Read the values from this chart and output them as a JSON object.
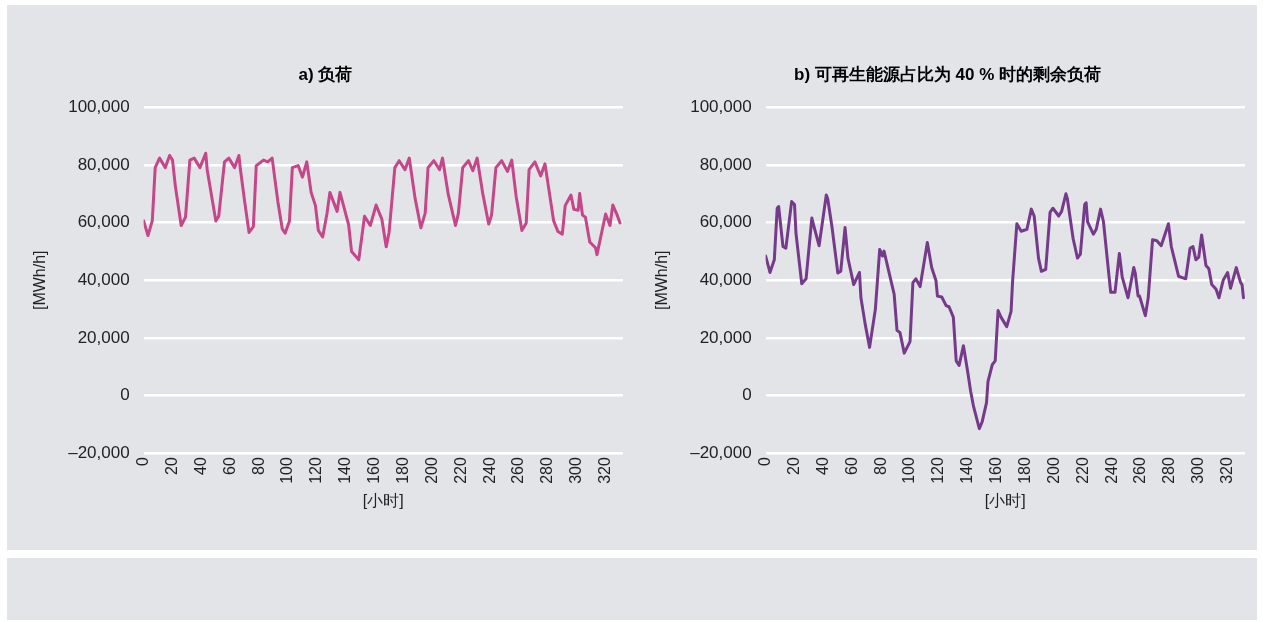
{
  "chart_data": [
    {
      "type": "line",
      "title": "a) 负荷",
      "xlabel": "[小时]",
      "ylabel": "[MWh/h]",
      "xlim": [
        0,
        332
      ],
      "xticks": [
        0,
        20,
        40,
        60,
        80,
        100,
        120,
        140,
        160,
        180,
        200,
        220,
        240,
        260,
        280,
        300,
        320
      ],
      "ylim": [
        -20000,
        100000
      ],
      "yticks": [
        {
          "value": -20000,
          "label": "–20,000"
        },
        0,
        {
          "value": 20000,
          "label": "20,000"
        },
        {
          "value": 40000,
          "label": "40,000"
        },
        {
          "value": 60000,
          "label": "60,000"
        },
        {
          "value": 80000,
          "label": "80,000"
        },
        {
          "value": 100000,
          "label": "100,000"
        }
      ],
      "grid": "y",
      "series": [
        {
          "color": "#c5478a",
          "x": [
            0,
            3,
            6,
            8,
            11,
            15,
            18,
            20,
            22,
            26,
            29,
            32,
            35,
            39,
            43,
            44,
            50,
            52,
            56,
            59,
            63,
            66,
            67,
            70,
            73,
            76,
            78,
            83,
            86,
            89,
            93,
            96,
            98,
            101,
            103,
            107,
            110,
            113,
            116,
            119,
            121,
            124,
            127,
            129,
            134,
            136,
            142,
            144,
            149,
            153,
            157,
            161,
            165,
            168,
            170,
            174,
            177,
            181,
            184,
            188,
            192,
            195,
            197,
            201,
            205,
            207,
            211,
            216,
            218,
            221,
            225,
            228,
            231,
            235,
            239,
            241,
            244,
            248,
            252,
            255,
            258,
            262,
            265,
            267,
            271,
            275,
            278,
            281,
            284,
            287,
            290,
            292,
            296,
            298,
            301,
            302,
            304,
            306,
            309,
            313,
            314,
            320,
            323,
            325,
            328,
            330
          ],
          "values": [
            60600,
            55500,
            60700,
            79100,
            82400,
            79100,
            83300,
            81700,
            72500,
            59000,
            61900,
            81700,
            82400,
            79100,
            84100,
            78400,
            60600,
            62200,
            81100,
            82400,
            79100,
            83300,
            78600,
            67200,
            56600,
            58600,
            79800,
            81700,
            81100,
            82400,
            67200,
            57900,
            56300,
            60600,
            79100,
            79800,
            75800,
            81100,
            70500,
            65900,
            57300,
            55000,
            63200,
            70500,
            63900,
            70500,
            59200,
            50000,
            47100,
            62200,
            59000,
            66100,
            61200,
            51600,
            56600,
            79100,
            81500,
            78400,
            82400,
            68500,
            58200,
            63200,
            79100,
            81500,
            78400,
            82400,
            69800,
            59000,
            63200,
            79100,
            81500,
            78000,
            82400,
            69800,
            59500,
            62600,
            79100,
            81500,
            77800,
            81700,
            69200,
            57300,
            59900,
            78400,
            81100,
            76200,
            80400,
            70500,
            60600,
            56900,
            56000,
            65900,
            69600,
            64600,
            64300,
            70100,
            62600,
            61900,
            53300,
            51300,
            48900,
            63000,
            59000,
            66100,
            62600,
            59900
          ]
        }
      ]
    },
    {
      "type": "line",
      "title": "b) 可再生能源占比为 40 % 时的剩余负荷",
      "xlabel": "[小时]",
      "ylabel": "[MWh/h]",
      "xlim": [
        0,
        332
      ],
      "xticks": [
        0,
        20,
        40,
        60,
        80,
        100,
        120,
        140,
        160,
        180,
        200,
        220,
        240,
        260,
        280,
        300,
        320
      ],
      "ylim": [
        -20000,
        100000
      ],
      "yticks": [
        {
          "value": -20000,
          "label": "–20,000"
        },
        0,
        {
          "value": 20000,
          "label": "20,000"
        },
        {
          "value": 40000,
          "label": "40,000"
        },
        {
          "value": 60000,
          "label": "60,000"
        },
        {
          "value": 80000,
          "label": "80,000"
        },
        {
          "value": 100000,
          "label": "100,000"
        }
      ],
      "grid": "y",
      "series": [
        {
          "color": "#763a8a",
          "x": [
            0,
            3,
            6,
            8,
            9,
            12,
            14,
            18,
            20,
            21,
            25,
            28,
            32,
            34,
            37,
            42,
            43,
            46,
            50,
            52,
            55,
            57,
            61,
            65,
            66,
            69,
            72,
            76,
            79,
            81,
            82,
            89,
            91,
            93,
            96,
            100,
            102,
            104,
            107,
            112,
            115,
            118,
            119,
            122,
            125,
            127,
            130,
            132,
            134,
            137,
            140,
            142,
            144,
            148,
            150,
            153,
            154,
            157,
            159,
            161,
            163,
            167,
            170,
            171,
            174,
            177,
            181,
            184,
            186,
            189,
            191,
            194,
            197,
            199,
            203,
            205,
            208,
            209,
            213,
            216,
            218,
            221,
            222,
            223,
            227,
            229,
            232,
            234,
            239,
            242,
            245,
            247,
            251,
            255,
            256,
            258,
            259,
            263,
            265,
            268,
            271,
            274,
            279,
            281,
            286,
            291,
            294,
            296,
            298,
            300,
            302,
            305,
            307,
            309,
            312,
            314,
            317,
            320,
            322,
            326,
            329,
            330,
            331
          ],
          "values": [
            48400,
            42700,
            47100,
            65000,
            65600,
            51700,
            51100,
            67300,
            66300,
            56300,
            38800,
            40500,
            61600,
            57700,
            52000,
            69600,
            68300,
            58300,
            42500,
            43100,
            58300,
            47700,
            38500,
            42700,
            33900,
            24600,
            16700,
            29900,
            50700,
            48400,
            50100,
            35200,
            22600,
            21900,
            14700,
            18700,
            39200,
            40500,
            37800,
            53100,
            44400,
            39800,
            34500,
            34200,
            31200,
            30800,
            27200,
            12000,
            10400,
            17300,
            8100,
            1500,
            -3800,
            -11500,
            -9100,
            -2500,
            4800,
            10700,
            12000,
            29500,
            27200,
            23900,
            29200,
            39200,
            59600,
            57000,
            57700,
            64700,
            62300,
            47700,
            43100,
            43800,
            63600,
            65000,
            62300,
            63900,
            70000,
            68300,
            54400,
            47700,
            49100,
            66300,
            66900,
            60300,
            56000,
            57700,
            64700,
            60300,
            35800,
            35800,
            49300,
            41100,
            33900,
            44400,
            42500,
            34500,
            34500,
            27700,
            33900,
            54100,
            53700,
            52000,
            59600,
            51700,
            41400,
            40500,
            51100,
            51700,
            47100,
            48000,
            55700,
            45100,
            44000,
            38500,
            36900,
            33900,
            40100,
            42700,
            37200,
            44400,
            39200,
            38500,
            33900
          ]
        }
      ]
    }
  ]
}
